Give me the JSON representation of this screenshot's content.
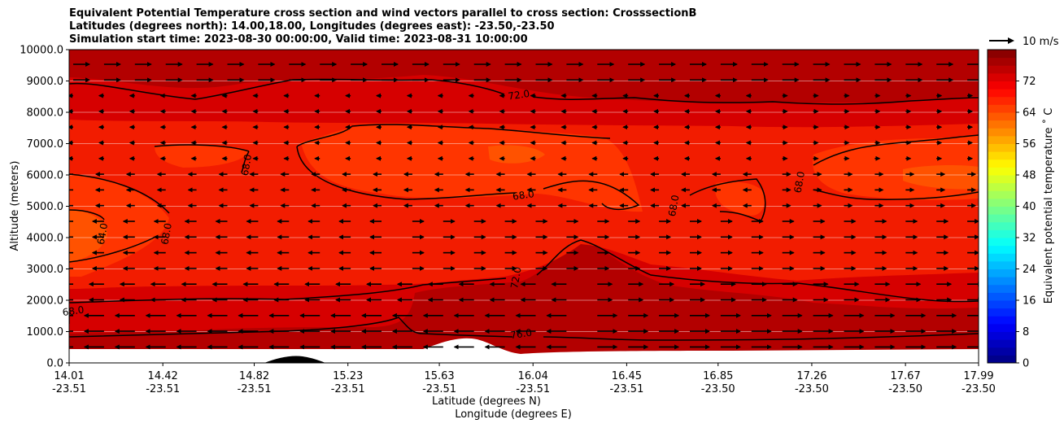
{
  "title_lines": [
    "Equivalent Potential Temperature cross section and wind vectors parallel to cross section: CrosssectionB",
    "Latitudes (degrees north): 14.00,18.00, Longitudes (degrees east): -23.50,-23.50",
    "Simulation start time: 2023-08-30 00:00:00, Valid time: 2023-08-31 10:00:00"
  ],
  "chart_data": {
    "type": "heatmap",
    "subtype": "filled-contour cross section with wind vectors",
    "ylabel": "Altitude (meters)",
    "xlabel_line1": "Latitude (degrees N)",
    "xlabel_line2": "Longitude (degrees E)",
    "ylim": [
      0,
      10000
    ],
    "y_ticks": [
      "0.0",
      "1000.0",
      "2000.0",
      "3000.0",
      "4000.0",
      "5000.0",
      "6000.0",
      "7000.0",
      "8000.0",
      "9000.0",
      "10000.0"
    ],
    "x_ticks": [
      {
        "lat": "14.01",
        "lon": "-23.51"
      },
      {
        "lat": "14.42",
        "lon": "-23.51"
      },
      {
        "lat": "14.82",
        "lon": "-23.51"
      },
      {
        "lat": "15.23",
        "lon": "-23.51"
      },
      {
        "lat": "15.63",
        "lon": "-23.51"
      },
      {
        "lat": "16.04",
        "lon": "-23.51"
      },
      {
        "lat": "16.45",
        "lon": "-23.51"
      },
      {
        "lat": "16.85",
        "lon": "-23.50"
      },
      {
        "lat": "17.26",
        "lon": "-23.50"
      },
      {
        "lat": "17.67",
        "lon": "-23.50"
      },
      {
        "lat": "17.99",
        "lon": "-23.50"
      }
    ],
    "grid": "horizontal",
    "colorbar": {
      "label": "Equivalent potential temperature ˚ C",
      "min": 0,
      "max": 80,
      "ticks": [
        "0",
        "8",
        "16",
        "24",
        "32",
        "40",
        "48",
        "56",
        "64",
        "72"
      ],
      "colormap": "jet"
    },
    "contour_labels": [
      {
        "text": "72.0",
        "x": 15.98,
        "y": 8450
      },
      {
        "text": "68.0",
        "x": 14.8,
        "y": 6300
      },
      {
        "text": "68.0",
        "x": 16.0,
        "y": 5250
      },
      {
        "text": "68.0",
        "x": 16.67,
        "y": 5000
      },
      {
        "text": "68.0",
        "x": 17.22,
        "y": 5750
      },
      {
        "text": "68.0",
        "x": 14.45,
        "y": 4100
      },
      {
        "text": "64.0",
        "x": 14.17,
        "y": 4100
      },
      {
        "text": "72.0",
        "x": 15.98,
        "y": 2700
      },
      {
        "text": "68.0",
        "x": 14.03,
        "y": 1550
      },
      {
        "text": "76.0",
        "x": 15.99,
        "y": 820
      }
    ],
    "quiver_key": {
      "label": "10 m/s",
      "speed": 10
    }
  },
  "colors": {
    "background_dark": "#b30000",
    "mid": "#d60000",
    "bright": "#f21c00",
    "orange": "#ff4500",
    "orange_light": "#ff5a00"
  }
}
